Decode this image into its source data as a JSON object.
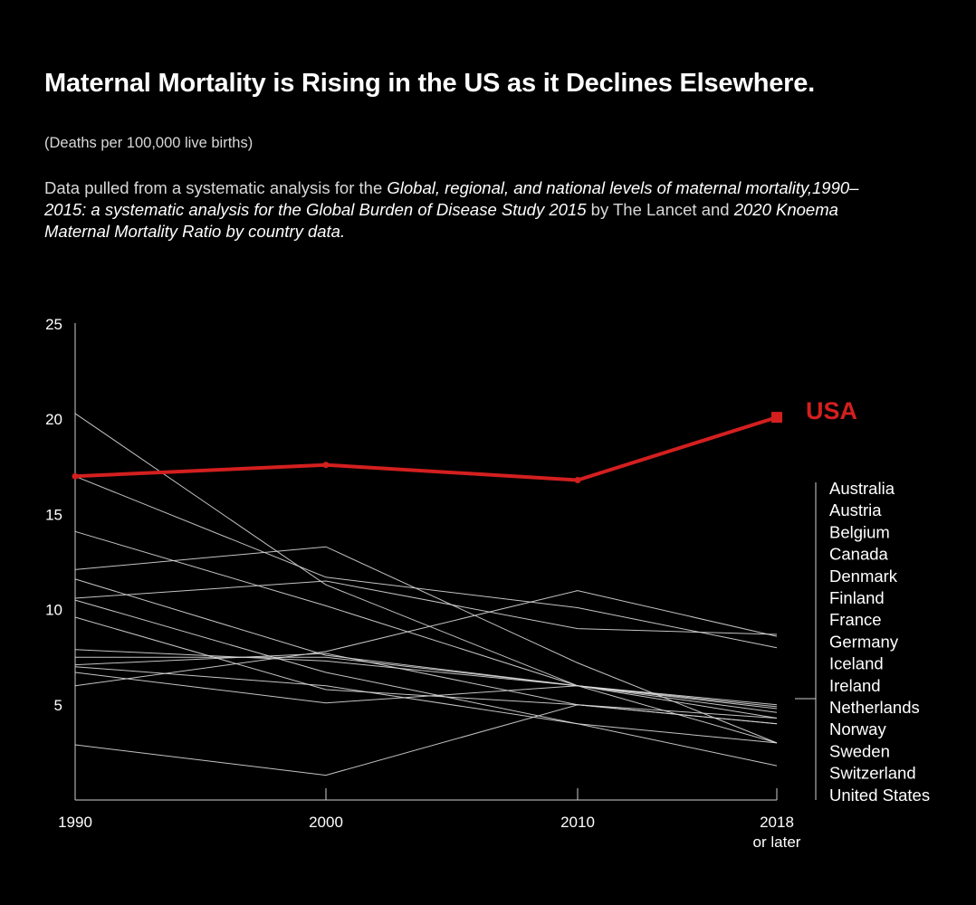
{
  "header": {
    "title": "Maternal Mortality is Rising in the US as it Declines Elsewhere.",
    "subtitle": "(Deaths per 100,000 live births)",
    "source": {
      "prefix": "Data pulled from a systematic analysis for the ",
      "study": "Global, regional, and national levels of maternal mortality,1990–2015: a systematic analysis for the Global Burden of Disease Study 2015",
      "middle": " by The Lancet and ",
      "dataset": "2020 Knoema Maternal Mortality Ratio by country data."
    }
  },
  "colors": {
    "background": "#000000",
    "highlight": "#d41f1f",
    "lines": "#d9d9d9",
    "axis": "#cfcfcf"
  },
  "chart_data": {
    "type": "line",
    "title": "Maternal Mortality is Rising in the US as it Declines Elsewhere.",
    "ylabel": "Deaths per 100,000 live births",
    "xlabel": "",
    "x": [
      "1990",
      "2000",
      "2010",
      "2018 or later"
    ],
    "x_tick_labels": [
      [
        "1990"
      ],
      [
        "2000"
      ],
      [
        "2010"
      ],
      [
        "2018",
        "or later"
      ]
    ],
    "ylim": [
      0,
      25
    ],
    "y_ticks": [
      5,
      10,
      15,
      20,
      25
    ],
    "grid": false,
    "highlight": {
      "name": "USA",
      "values": [
        17.0,
        17.6,
        16.8,
        20.1
      ]
    },
    "series": [
      {
        "name": "",
        "values": [
          20.3,
          11.3,
          6.0,
          3.0
        ]
      },
      {
        "name": "",
        "values": [
          17.0,
          11.7,
          10.1,
          8.0
        ]
      },
      {
        "name": "",
        "values": [
          14.1,
          10.2,
          6.0,
          4.6
        ]
      },
      {
        "name": "",
        "values": [
          12.1,
          13.3,
          7.2,
          3.0
        ]
      },
      {
        "name": "",
        "values": [
          11.6,
          7.6,
          6.0,
          4.8
        ]
      },
      {
        "name": "",
        "values": [
          10.6,
          11.5,
          9.0,
          8.7
        ]
      },
      {
        "name": "",
        "values": [
          10.5,
          6.7,
          4.0,
          3.0
        ]
      },
      {
        "name": "",
        "values": [
          9.6,
          5.8,
          5.0,
          4.3
        ]
      },
      {
        "name": "",
        "values": [
          7.9,
          7.3,
          6.0,
          5.0
        ]
      },
      {
        "name": "",
        "values": [
          7.5,
          7.5,
          6.0,
          4.9
        ]
      },
      {
        "name": "",
        "values": [
          7.1,
          7.7,
          5.0,
          4.0
        ]
      },
      {
        "name": "",
        "values": [
          7.0,
          6.0,
          4.0,
          1.8
        ]
      },
      {
        "name": "",
        "values": [
          6.7,
          5.1,
          6.0,
          4.3
        ]
      },
      {
        "name": "",
        "values": [
          6.0,
          7.8,
          11.0,
          8.6
        ]
      },
      {
        "name": "",
        "values": [
          2.9,
          1.3,
          5.0,
          4.0
        ]
      }
    ],
    "legend": {
      "placement": "right",
      "entries": [
        "Australia",
        "Austria",
        "Belgium",
        "Canada",
        "Denmark",
        "Finland",
        "France",
        "Germany",
        "Iceland",
        "Ireland",
        "Netherlands",
        "Norway",
        "Sweden",
        "Switzerland",
        "United States"
      ]
    }
  }
}
